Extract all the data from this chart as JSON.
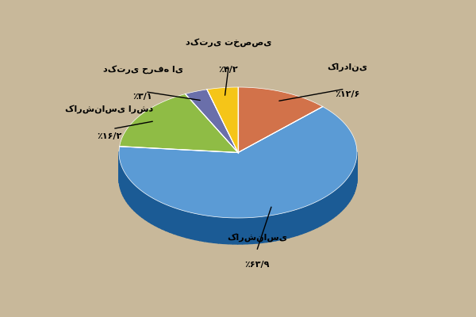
{
  "labels": [
    "کاردانی",
    "کارشناسی",
    "کارشناسی ارشد",
    "دکتری حرفه ای",
    "دکتری تخصصی"
  ],
  "values": [
    12.6,
    63.9,
    16.2,
    3.1,
    4.2
  ],
  "colors": [
    "#d2724a",
    "#5b9bd5",
    "#8fbc45",
    "#6a6faa",
    "#f5c518"
  ],
  "background_color": "#c8b89a",
  "label_percents": [
    "۱۲/۶٪",
    "۶۳/۹٪",
    "۱۶/۲٪",
    "۳/۱٪",
    "۴/۲٪"
  ],
  "shadow_color": "#2a3a4a",
  "figsize": [
    6.0,
    4.0
  ],
  "dpi": 100
}
